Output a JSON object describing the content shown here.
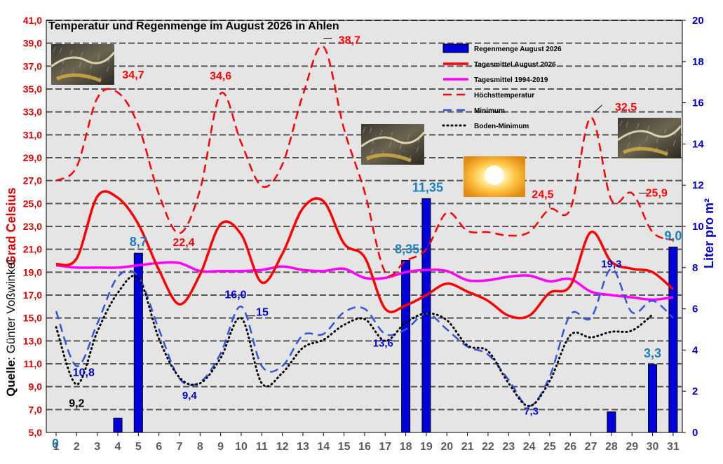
{
  "chart_data": {
    "type": "line",
    "title": "Temperatur und Regenmenge im August 2026 in Ahlen",
    "ylabel": "Grad Celsius",
    "y2label": "Liter pro m²",
    "source_label": "Quelle",
    "source_name": ": Günter Voßwinkel",
    "ylim": [
      5,
      41
    ],
    "y2lim": [
      0,
      20
    ],
    "yticks": [
      "5,0",
      "7,0",
      "9,0",
      "11,0",
      "13,0",
      "15,0",
      "17,0",
      "19,0",
      "21,0",
      "23,0",
      "25,0",
      "27,0",
      "29,0",
      "31,0",
      "33,0",
      "35,0",
      "37,0",
      "39,0",
      "41,0"
    ],
    "y2ticks": [
      "0",
      "2",
      "4",
      "6",
      "8",
      "10",
      "12",
      "14",
      "16",
      "18",
      "20"
    ],
    "x": [
      1,
      2,
      3,
      4,
      5,
      6,
      7,
      8,
      9,
      10,
      11,
      12,
      13,
      14,
      15,
      16,
      17,
      18,
      19,
      20,
      21,
      22,
      23,
      24,
      25,
      26,
      27,
      28,
      29,
      30,
      31
    ],
    "grid": true,
    "legend_position": "top-right",
    "series": [
      {
        "name": "Regenmenge August 2026",
        "type": "bar",
        "axis": "right",
        "color": "#0000dd",
        "values": [
          0,
          0,
          0,
          0.7,
          8.7,
          0,
          0,
          0,
          0,
          0,
          0,
          0,
          0,
          0,
          0,
          0,
          0,
          8.35,
          11.35,
          0,
          0,
          0,
          0,
          0,
          0,
          0,
          0,
          1.0,
          0,
          3.3,
          9.0
        ]
      },
      {
        "name": "Tagesmittel August 2026",
        "type": "line",
        "style": "solid",
        "color": "#ff0000",
        "values": [
          19.7,
          20.2,
          25.6,
          25.5,
          23.2,
          19.2,
          16.2,
          18.8,
          23.2,
          22.3,
          18.1,
          20.6,
          24.6,
          25.2,
          21.5,
          20.3,
          15.8,
          16.1,
          17.0,
          18.0,
          17.3,
          16.5,
          15.2,
          15.2,
          17.2,
          17.8,
          22.5,
          19.9,
          19.3,
          19.0,
          17.5
        ]
      },
      {
        "name": "Tagesmittel 1994-2019",
        "type": "line",
        "style": "solid",
        "color": "#ff00ff",
        "values": [
          19.6,
          19.4,
          19.4,
          19.4,
          19.6,
          19.8,
          19.8,
          19.1,
          19.1,
          19.1,
          19.2,
          19.5,
          19.2,
          19.1,
          19.3,
          18.5,
          18.5,
          19.0,
          19.2,
          19.1,
          18.3,
          18.3,
          18.6,
          18.7,
          18.2,
          18.4,
          17.3,
          17.0,
          16.8,
          16.6,
          16.8
        ]
      },
      {
        "name": "Höchsttemperatur",
        "type": "line",
        "style": "dashed",
        "color": "#ff0000",
        "values": [
          27.0,
          28.2,
          34.2,
          34.7,
          31.8,
          25.8,
          22.4,
          26.2,
          34.6,
          30.3,
          26.5,
          28.4,
          34.5,
          38.7,
          31.5,
          26.0,
          19.0,
          20.0,
          21.0,
          24.2,
          22.6,
          22.5,
          22.2,
          22.5,
          24.5,
          24.5,
          32.5,
          25.3,
          25.9,
          22.5,
          21.8
        ]
      },
      {
        "name": "Minimum",
        "type": "line",
        "style": "dashed",
        "color": "#3355dd",
        "values": [
          15.6,
          10.8,
          14.5,
          18.6,
          18.6,
          14.0,
          9.7,
          9.4,
          11.9,
          16.0,
          10.8,
          10.8,
          13.5,
          13.6,
          15.5,
          15.8,
          13.6,
          14.0,
          15.4,
          14.0,
          12.5,
          11.8,
          9.6,
          7.3,
          9.9,
          15.3,
          15.0,
          19.3,
          15.5,
          16.5,
          15.0
        ]
      },
      {
        "name": "Boden-Minimum",
        "type": "line",
        "style": "dotted",
        "color": "#000000",
        "values": [
          14.2,
          9.2,
          13.8,
          17.2,
          18.5,
          13.2,
          9.8,
          9.3,
          11.5,
          15.0,
          9.3,
          10.2,
          12.4,
          13.1,
          14.4,
          14.9,
          13.0,
          14.6,
          15.4,
          14.8,
          12.6,
          12.1,
          9.3,
          7.3,
          9.5,
          13.5,
          13.3,
          13.8,
          13.9,
          15.3,
          null
        ]
      }
    ],
    "annotations": [
      {
        "text": "34,7",
        "x": 4,
        "y": 34.7,
        "color": "#ff0000"
      },
      {
        "text": "22,4",
        "x": 7,
        "y": 22.4,
        "color": "#ff0000"
      },
      {
        "text": "34,6",
        "x": 9,
        "y": 34.6,
        "color": "#ff0000"
      },
      {
        "text": "38,7",
        "x": 14,
        "y": 38.7,
        "color": "#ff0000"
      },
      {
        "text": "24,5",
        "x": 25,
        "y": 24.5,
        "color": "#ff0000"
      },
      {
        "text": "32,5",
        "x": 27,
        "y": 32.5,
        "color": "#ff0000"
      },
      {
        "text": "25,9",
        "x": 29,
        "y": 25.9,
        "color": "#ff0000"
      },
      {
        "text": "10,8",
        "x": 2,
        "y": 10.8,
        "color": "#0000cc"
      },
      {
        "text": "9,4",
        "x": 8,
        "y": 9.4,
        "color": "#0000cc"
      },
      {
        "text": "16,0",
        "x": 10,
        "y": 16.0,
        "color": "#0000cc"
      },
      {
        "text": "13,6",
        "x": 17,
        "y": 13.6,
        "color": "#0000cc"
      },
      {
        "text": "7,3",
        "x": 24,
        "y": 7.3,
        "color": "#0000cc"
      },
      {
        "text": "19,3",
        "x": 28,
        "y": 19.3,
        "color": "#0000cc"
      },
      {
        "text": "9,2",
        "x": 2,
        "y": 9.2,
        "color": "#000000"
      },
      {
        "text": "15",
        "x": 10,
        "y": 15.0,
        "color": "#0000cc"
      },
      {
        "text": "8,7",
        "x": 5,
        "y": 8.7,
        "color": "#1a7fc0",
        "axis": "right"
      },
      {
        "text": "8,35",
        "x": 18,
        "y": 8.35,
        "color": "#1a7fc0",
        "axis": "right"
      },
      {
        "text": "11,35",
        "x": 19,
        "y": 11.35,
        "color": "#1a7fc0",
        "axis": "right"
      },
      {
        "text": "3,3",
        "x": 30,
        "y": 3.3,
        "color": "#1a7fc0",
        "axis": "right"
      },
      {
        "text": "9,0",
        "x": 31,
        "y": 9.0,
        "color": "#1a7fc0",
        "axis": "right"
      },
      {
        "text": "0",
        "x": 1,
        "y": 0,
        "color": "#1a7fc0",
        "axis": "right"
      }
    ],
    "weather_icons": [
      {
        "name": "rain-icon",
        "x": 4
      },
      {
        "name": "rain-icon",
        "x": 18
      },
      {
        "name": "sun-icon",
        "x": 21
      },
      {
        "name": "rain-icon",
        "x": 30
      }
    ]
  }
}
